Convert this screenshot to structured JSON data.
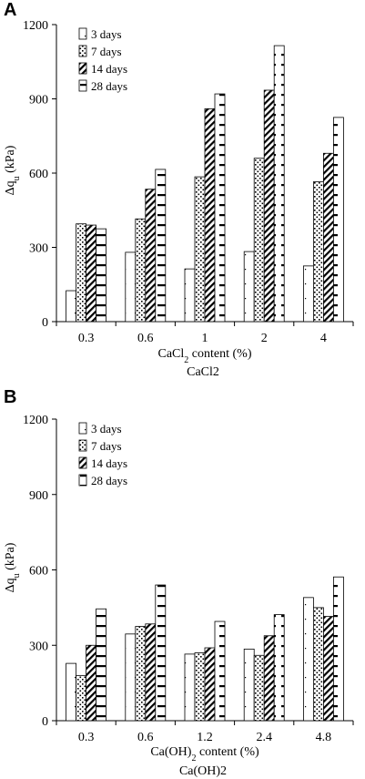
{
  "panels": [
    {
      "letter": "A",
      "sublabel": "CaCl2",
      "ylabel_main": "Δq",
      "ylabel_sub": "u",
      "ylabel_tail": " (kPa)",
      "xlabel_pre": "CaCl",
      "xlabel_sub": "2",
      "xlabel_post": " content (%)"
    },
    {
      "letter": "B",
      "sublabel": "Ca(OH)2",
      "ylabel_main": "Δq",
      "ylabel_sub": "u",
      "ylabel_tail": " (kPa)",
      "xlabel_pre": "Ca(OH)",
      "xlabel_sub": "2",
      "xlabel_post": " content (%)"
    }
  ],
  "chart_data": [
    {
      "type": "bar",
      "categories": [
        "0.3",
        "0.6",
        "1",
        "2",
        "4"
      ],
      "series": [
        {
          "name": "3 days",
          "values": [
            125,
            280,
            213,
            283,
            225
          ]
        },
        {
          "name": "7 days",
          "values": [
            395,
            415,
            585,
            660,
            565
          ]
        },
        {
          "name": "14 days",
          "values": [
            390,
            535,
            860,
            935,
            680
          ]
        },
        {
          "name": "28 days",
          "values": [
            375,
            615,
            920,
            1115,
            825
          ]
        }
      ],
      "xlabel": "CaCl2 content (%)",
      "ylabel": "Δqu (kPa)",
      "ylim": [
        0,
        1200
      ],
      "yticks": [
        0,
        300,
        600,
        900,
        1200
      ],
      "legend_position": "top-left",
      "grid": false
    },
    {
      "type": "bar",
      "categories": [
        "0.3",
        "0.6",
        "1.2",
        "2.4",
        "4.8"
      ],
      "series": [
        {
          "name": "3 days",
          "values": [
            228,
            345,
            265,
            285,
            490
          ]
        },
        {
          "name": "7 days",
          "values": [
            180,
            375,
            270,
            260,
            450
          ]
        },
        {
          "name": "14 days",
          "values": [
            300,
            385,
            290,
            338,
            415
          ]
        },
        {
          "name": "28 days",
          "values": [
            445,
            540,
            395,
            422,
            572
          ]
        }
      ],
      "xlabel": "Ca(OH)2 content (%)",
      "ylabel": "Δqu (kPa)",
      "ylim": [
        0,
        1200
      ],
      "yticks": [
        0,
        300,
        600,
        900,
        1200
      ],
      "legend_position": "top-left",
      "grid": false
    }
  ],
  "colors": {
    "ink": "#000000",
    "paper": "#ffffff"
  }
}
